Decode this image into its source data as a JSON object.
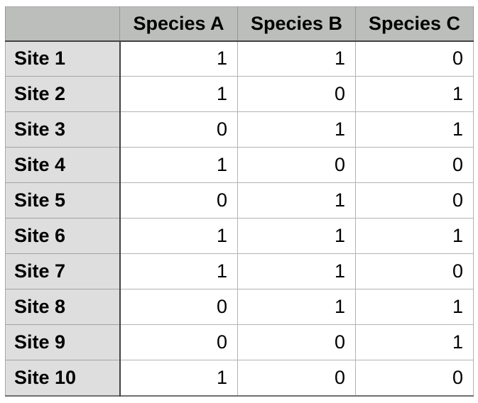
{
  "table": {
    "corner_label": "",
    "columns": [
      "Species A",
      "Species B",
      "Species C"
    ],
    "rows": [
      {
        "label": "Site 1",
        "values": [
          1,
          1,
          0
        ]
      },
      {
        "label": "Site 2",
        "values": [
          1,
          0,
          1
        ]
      },
      {
        "label": "Site 3",
        "values": [
          0,
          1,
          1
        ]
      },
      {
        "label": "Site 4",
        "values": [
          1,
          0,
          0
        ]
      },
      {
        "label": "Site 5",
        "values": [
          0,
          1,
          0
        ]
      },
      {
        "label": "Site 6",
        "values": [
          1,
          1,
          1
        ]
      },
      {
        "label": "Site 7",
        "values": [
          1,
          1,
          0
        ]
      },
      {
        "label": "Site 8",
        "values": [
          0,
          1,
          1
        ]
      },
      {
        "label": "Site 9",
        "values": [
          0,
          0,
          1
        ]
      },
      {
        "label": "Site 10",
        "values": [
          1,
          0,
          0
        ]
      }
    ]
  },
  "chart_data": {
    "type": "table",
    "title": "",
    "columns": [
      "Species A",
      "Species B",
      "Species C"
    ],
    "row_labels": [
      "Site 1",
      "Site 2",
      "Site 3",
      "Site 4",
      "Site 5",
      "Site 6",
      "Site 7",
      "Site 8",
      "Site 9",
      "Site 10"
    ],
    "values": [
      [
        1,
        1,
        0
      ],
      [
        1,
        0,
        1
      ],
      [
        0,
        1,
        1
      ],
      [
        1,
        0,
        0
      ],
      [
        0,
        1,
        0
      ],
      [
        1,
        1,
        1
      ],
      [
        1,
        1,
        0
      ],
      [
        0,
        1,
        1
      ],
      [
        0,
        0,
        1
      ],
      [
        1,
        0,
        0
      ]
    ]
  },
  "colors": {
    "header_bg": "#bcbebc",
    "row_label_bg": "#dedede",
    "cell_bg": "#ffffff",
    "grid_line": "#b3b3b3",
    "emphasis_line": "#424242",
    "outer_border": "#8f8f8f",
    "text": "#000000"
  }
}
